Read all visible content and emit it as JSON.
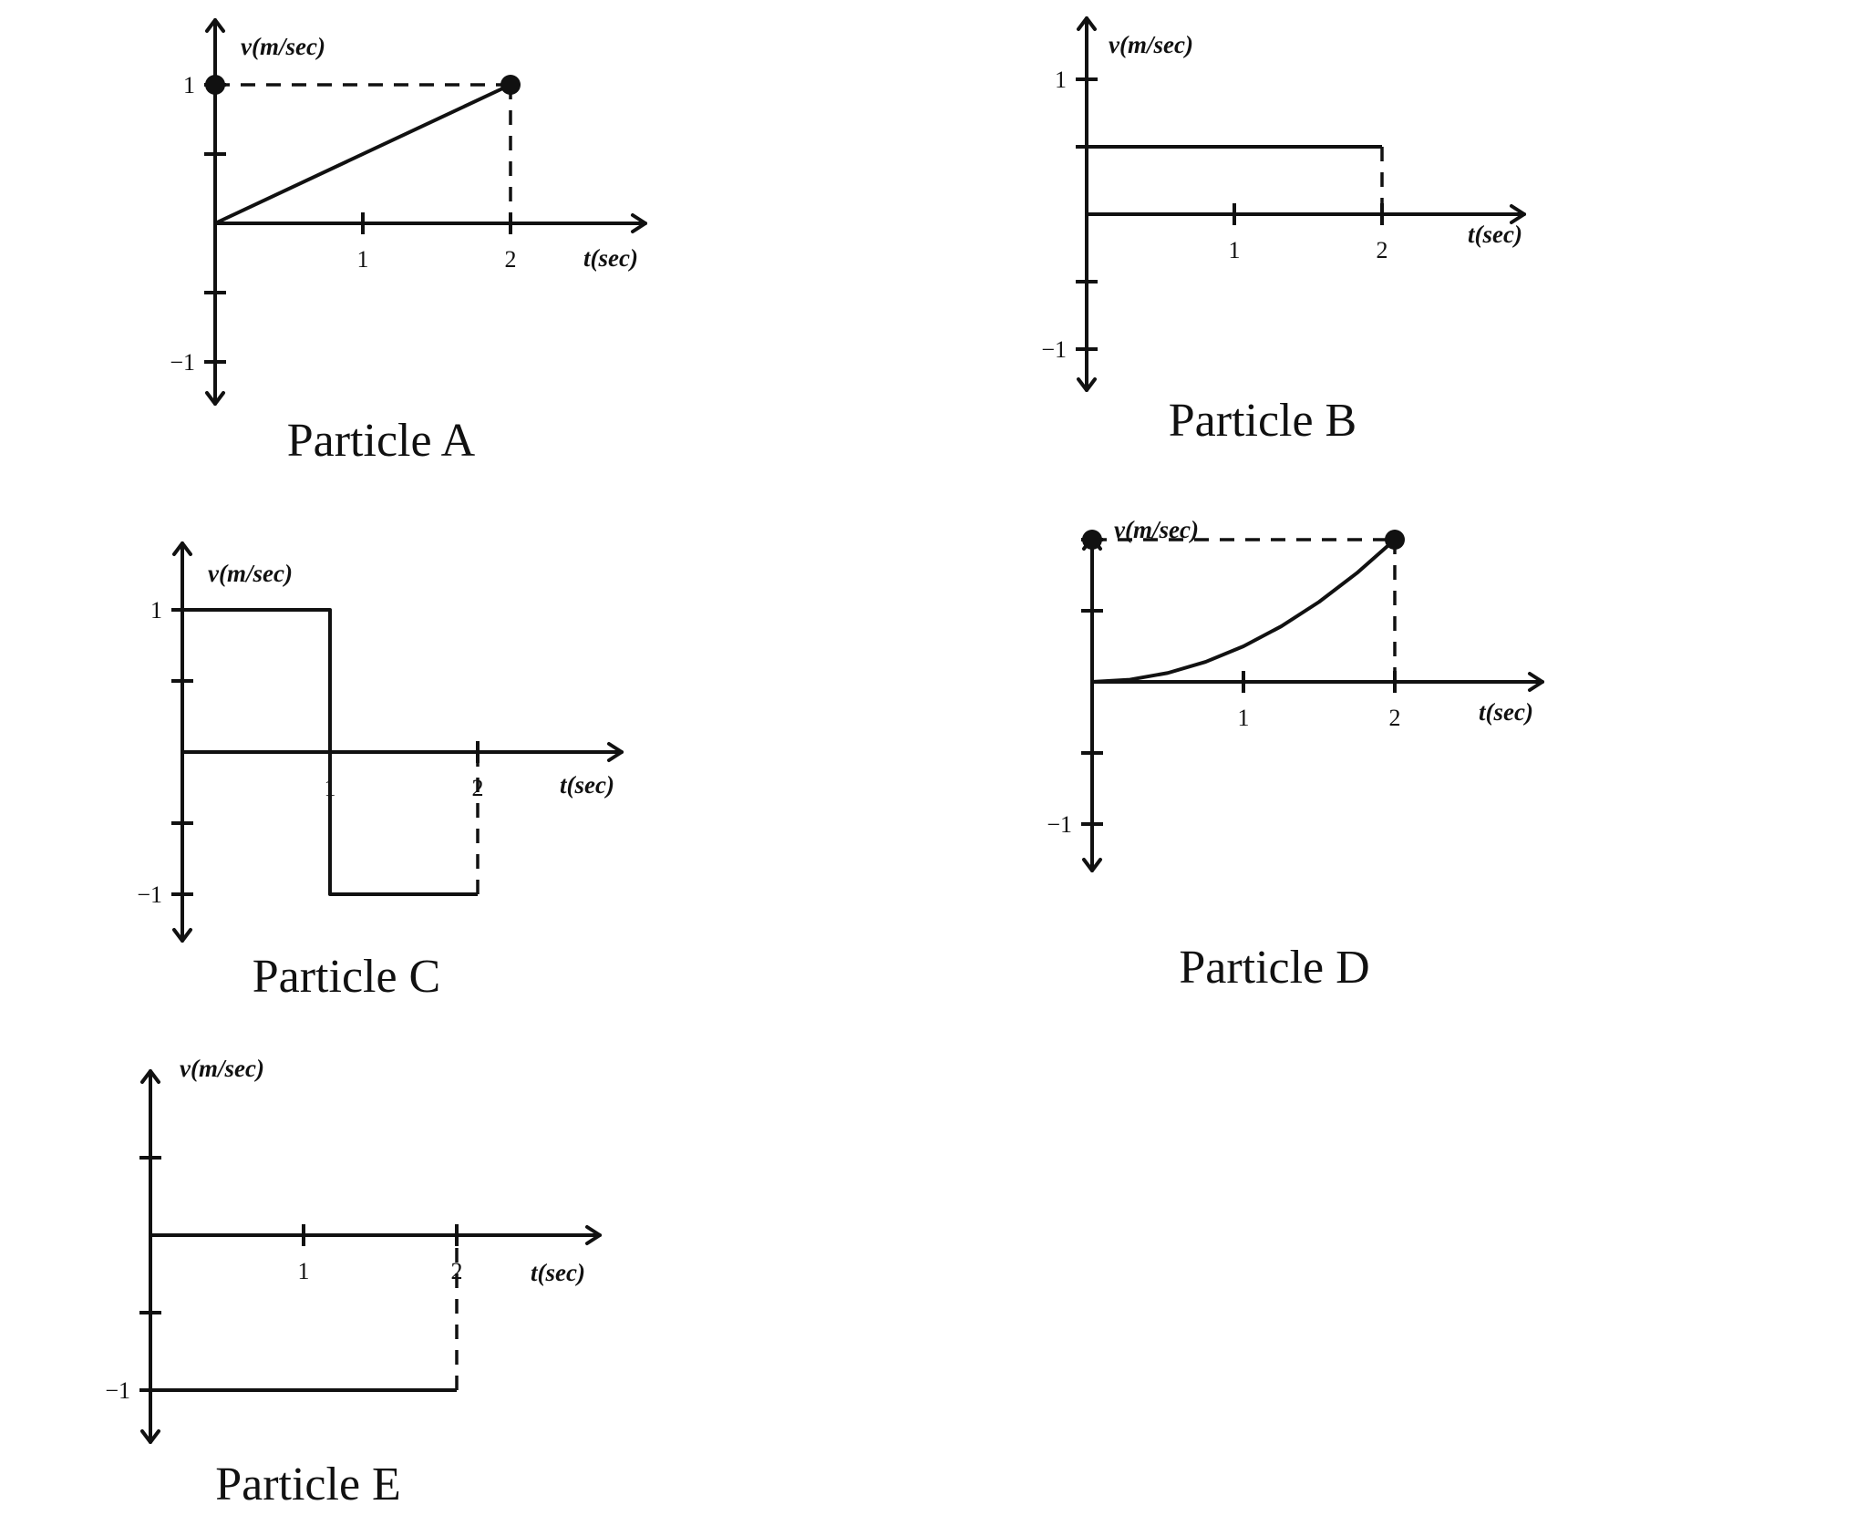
{
  "chart_data": [
    {
      "type": "line",
      "title": "Particle A",
      "xlabel": "t(sec)",
      "ylabel": "v(m/sec)",
      "xlim": [
        0,
        2
      ],
      "ylim": [
        -1,
        1
      ],
      "x_ticks": [
        1,
        2
      ],
      "x_tick_labels": [
        "1",
        "2"
      ],
      "y_ticks": [
        -1,
        -0.5,
        0.5,
        1
      ],
      "y_tick_labels": [
        "-1",
        "",
        "",
        "1"
      ],
      "series": [
        {
          "x": [
            0,
            2
          ],
          "y": [
            0,
            1
          ]
        }
      ],
      "reference_lines": [
        {
          "x": [
            0,
            2
          ],
          "y": [
            1,
            1
          ],
          "style": "dashed"
        },
        {
          "x": [
            2,
            2
          ],
          "y": [
            1,
            0
          ],
          "style": "dashed"
        }
      ],
      "markers": [
        {
          "x": 0,
          "y": 1
        },
        {
          "x": 2,
          "y": 1
        }
      ],
      "grid": false
    },
    {
      "type": "line",
      "title": "Particle B",
      "xlabel": "t(sec)",
      "ylabel": "v(m/sec)",
      "xlim": [
        0,
        2
      ],
      "ylim": [
        -1,
        1
      ],
      "x_ticks": [
        1,
        2
      ],
      "x_tick_labels": [
        "1",
        "2"
      ],
      "y_ticks": [
        -1,
        -0.5,
        0.5,
        1
      ],
      "y_tick_labels": [
        "-1",
        "",
        "",
        "1"
      ],
      "series": [
        {
          "x": [
            0,
            2
          ],
          "y": [
            0.5,
            0.5
          ]
        }
      ],
      "reference_lines": [
        {
          "x": [
            2,
            2
          ],
          "y": [
            0.5,
            0
          ],
          "style": "dashed"
        }
      ],
      "markers": [],
      "grid": false
    },
    {
      "type": "line",
      "title": "Particle C",
      "xlabel": "t(sec)",
      "ylabel": "v(m/sec)",
      "xlim": [
        0,
        2
      ],
      "ylim": [
        -1,
        1
      ],
      "x_ticks": [
        1,
        2
      ],
      "x_tick_labels": [
        "1",
        "2"
      ],
      "y_ticks": [
        -1,
        -0.5,
        0.5,
        1
      ],
      "y_tick_labels": [
        "-1",
        "",
        "",
        "1"
      ],
      "series": [
        {
          "x": [
            0,
            1,
            1,
            2
          ],
          "y": [
            1,
            1,
            -1,
            -1
          ]
        }
      ],
      "reference_lines": [
        {
          "x": [
            2,
            2
          ],
          "y": [
            -1,
            0
          ],
          "style": "dashed"
        }
      ],
      "markers": [],
      "grid": false
    },
    {
      "type": "line",
      "title": "Particle D",
      "xlabel": "t(sec)",
      "ylabel": "v(m/sec)",
      "xlim": [
        0,
        2
      ],
      "ylim": [
        -1,
        1
      ],
      "x_ticks": [
        1,
        2
      ],
      "x_tick_labels": [
        "1",
        "2"
      ],
      "y_ticks": [
        -1,
        -0.5,
        0.5,
        1
      ],
      "y_tick_labels": [
        "-1",
        "",
        "",
        ""
      ],
      "series": [
        {
          "x": [
            0,
            0.25,
            0.5,
            0.75,
            1,
            1.25,
            1.5,
            1.75,
            2
          ],
          "y": [
            0,
            0.0156,
            0.0625,
            0.1406,
            0.25,
            0.3906,
            0.5625,
            0.7656,
            1
          ]
        }
      ],
      "reference_lines": [
        {
          "x": [
            0,
            2
          ],
          "y": [
            1,
            1
          ],
          "style": "dashed"
        },
        {
          "x": [
            2,
            2
          ],
          "y": [
            1,
            0
          ],
          "style": "dashed"
        }
      ],
      "markers": [
        {
          "x": 0,
          "y": 1
        },
        {
          "x": 2,
          "y": 1
        }
      ],
      "grid": false
    },
    {
      "type": "line",
      "title": "Particle E",
      "xlabel": "t(sec)",
      "ylabel": "v(m/sec)",
      "xlim": [
        0,
        2
      ],
      "ylim": [
        -1,
        1
      ],
      "x_ticks": [
        1,
        2
      ],
      "x_tick_labels": [
        "1",
        "2"
      ],
      "y_ticks": [
        -1,
        -0.5,
        0.5
      ],
      "y_tick_labels": [
        "-1",
        "",
        ""
      ],
      "series": [
        {
          "x": [
            0,
            2
          ],
          "y": [
            -1,
            -1
          ]
        }
      ],
      "reference_lines": [
        {
          "x": [
            2,
            2
          ],
          "y": [
            -1,
            0
          ],
          "style": "dashed"
        }
      ],
      "markers": [],
      "grid": false
    }
  ]
}
